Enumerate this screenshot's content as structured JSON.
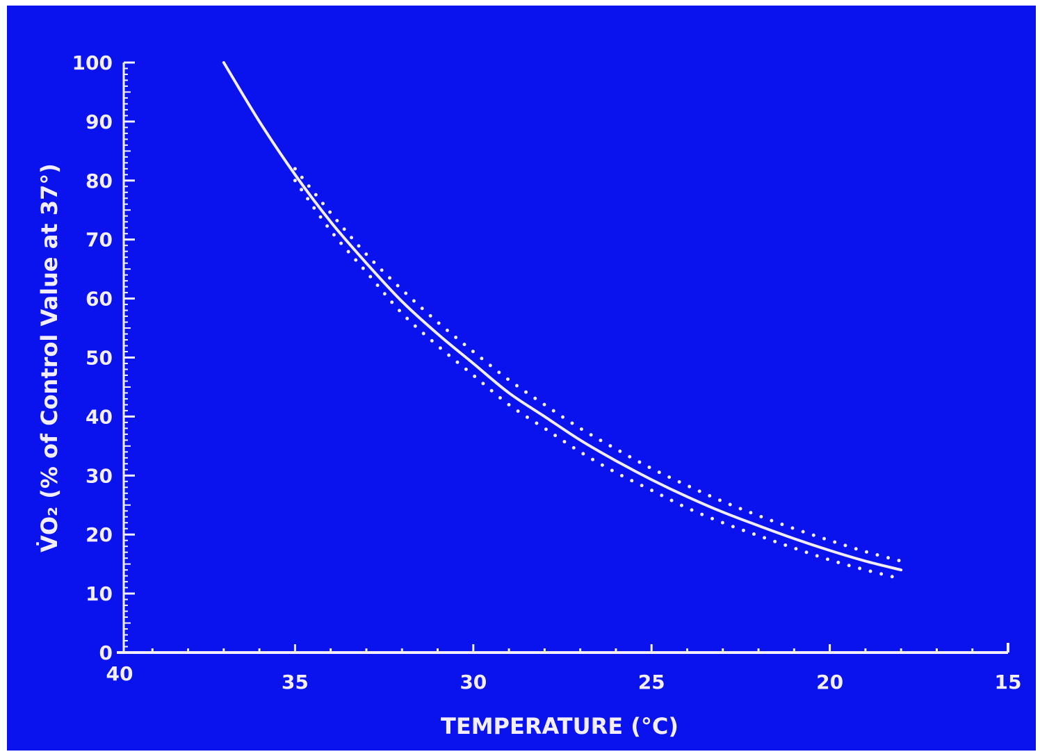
{
  "colors": {
    "background": "#0a12ee",
    "foreground": "#f2eeff"
  },
  "chart_data": {
    "type": "line",
    "title": "",
    "xlabel": "TEMPERATURE (°C)",
    "ylabel": "V̇O₂ (% of Control Value at 37°)",
    "xlim": [
      40,
      15
    ],
    "ylim": [
      0,
      100
    ],
    "x_reversed": true,
    "xticks": [
      "40",
      "35",
      "30",
      "25",
      "20",
      "15"
    ],
    "yticks": [
      "0",
      "10",
      "20",
      "30",
      "40",
      "50",
      "60",
      "70",
      "80",
      "90",
      "100"
    ],
    "grid": false,
    "series": [
      {
        "style": "solid",
        "x": [
          37,
          36,
          35,
          34,
          33,
          32,
          31,
          30,
          29,
          28,
          27,
          26,
          25,
          24,
          23,
          22,
          21,
          20,
          19,
          18
        ],
        "y": [
          100,
          90,
          81,
          73,
          66,
          59.5,
          54,
          49,
          44,
          40,
          36,
          32.5,
          29.3,
          26.4,
          23.8,
          21.5,
          19.3,
          17.3,
          15.5,
          14
        ]
      },
      {
        "style": "dotted",
        "x": [
          35,
          34,
          33,
          32,
          31,
          30,
          29,
          28,
          27,
          26,
          25,
          24,
          23,
          22,
          21,
          20,
          19,
          18
        ],
        "y": [
          82,
          74.5,
          67.5,
          61.5,
          56,
          51,
          46.2,
          42,
          38,
          34.5,
          31.2,
          28.3,
          25.6,
          23.2,
          21,
          19,
          17.1,
          15.5
        ]
      },
      {
        "style": "dotted",
        "x": [
          35,
          34,
          33,
          32,
          31,
          30,
          29,
          28,
          27,
          26,
          25,
          24,
          23,
          22,
          21,
          20,
          19,
          18
        ],
        "y": [
          80,
          71.5,
          64.5,
          57.5,
          52,
          47,
          42,
          38,
          34,
          30.5,
          27.5,
          24.5,
          22,
          19.8,
          17.7,
          15.7,
          14,
          12.5
        ]
      }
    ]
  }
}
